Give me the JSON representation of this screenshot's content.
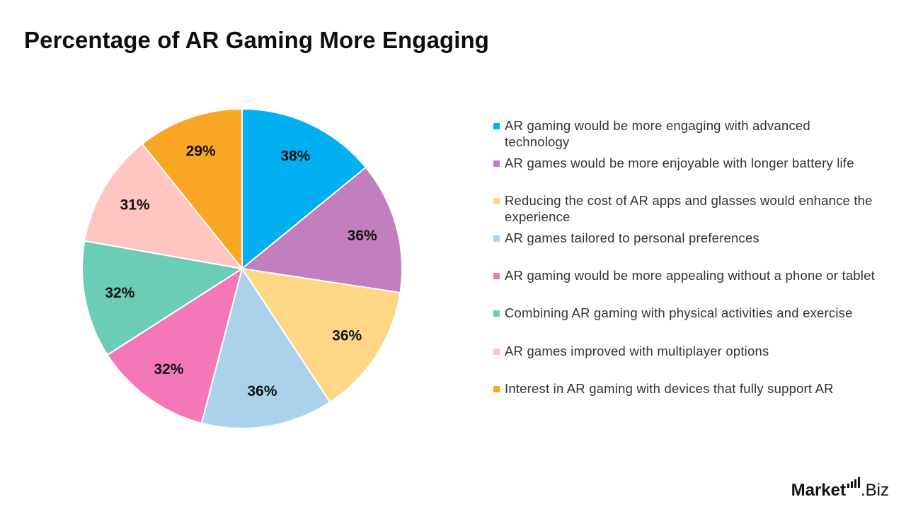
{
  "title": "Percentage of AR Gaming More Engaging",
  "chart_data": {
    "type": "pie",
    "title": "Percentage of AR Gaming More Engaging",
    "unit": "%",
    "start": "12 o'clock, clockwise",
    "categories": [
      "AR gaming would be more engaging with advanced technology",
      "AR games would be more enjoyable with longer battery life",
      "Reducing the cost of AR apps and glasses would enhance the experience",
      "AR games tailored to personal preferences",
      "AR gaming would be more appealing without a phone or tablet",
      "Combining AR gaming with physical activities and exercise",
      "AR games improved with multiplayer options",
      "Interest in AR gaming with devices that fully support AR"
    ],
    "values": [
      38,
      36,
      36,
      36,
      32,
      32,
      31,
      29
    ],
    "labels": [
      "38%",
      "36%",
      "36%",
      "36%",
      "32%",
      "32%",
      "31%",
      "29%"
    ],
    "colors": [
      "#00b0f0",
      "#c27fbf",
      "#fed686",
      "#abd2ec",
      "#f478b8",
      "#6ccdb6",
      "#fec5c1",
      "#faa625"
    ],
    "legend_position": "right"
  },
  "legend": {
    "items": [
      {
        "label": "AR gaming would be more engaging with advanced technology",
        "color": "#00b0f0"
      },
      {
        "label": "AR games would be more enjoyable with longer battery life",
        "color": "#c27fbf"
      },
      {
        "label": "Reducing the cost of AR apps and glasses would enhance the experience",
        "color": "#fed686"
      },
      {
        "label": "AR games tailored to personal preferences",
        "color": "#abd2ec"
      },
      {
        "label": "AR gaming would be more appealing without a phone or tablet",
        "color": "#f478b8"
      },
      {
        "label": "Combining AR gaming with physical activities and exercise",
        "color": "#6ccdb6"
      },
      {
        "label": "AR games improved with multiplayer options",
        "color": "#fec5c1"
      },
      {
        "label": "Interest in AR gaming with devices that fully support AR",
        "color": "#faa625"
      }
    ]
  },
  "brand": {
    "name": "Market",
    "suffix": ".Biz",
    "logo_icon": "signal-bars-icon"
  }
}
